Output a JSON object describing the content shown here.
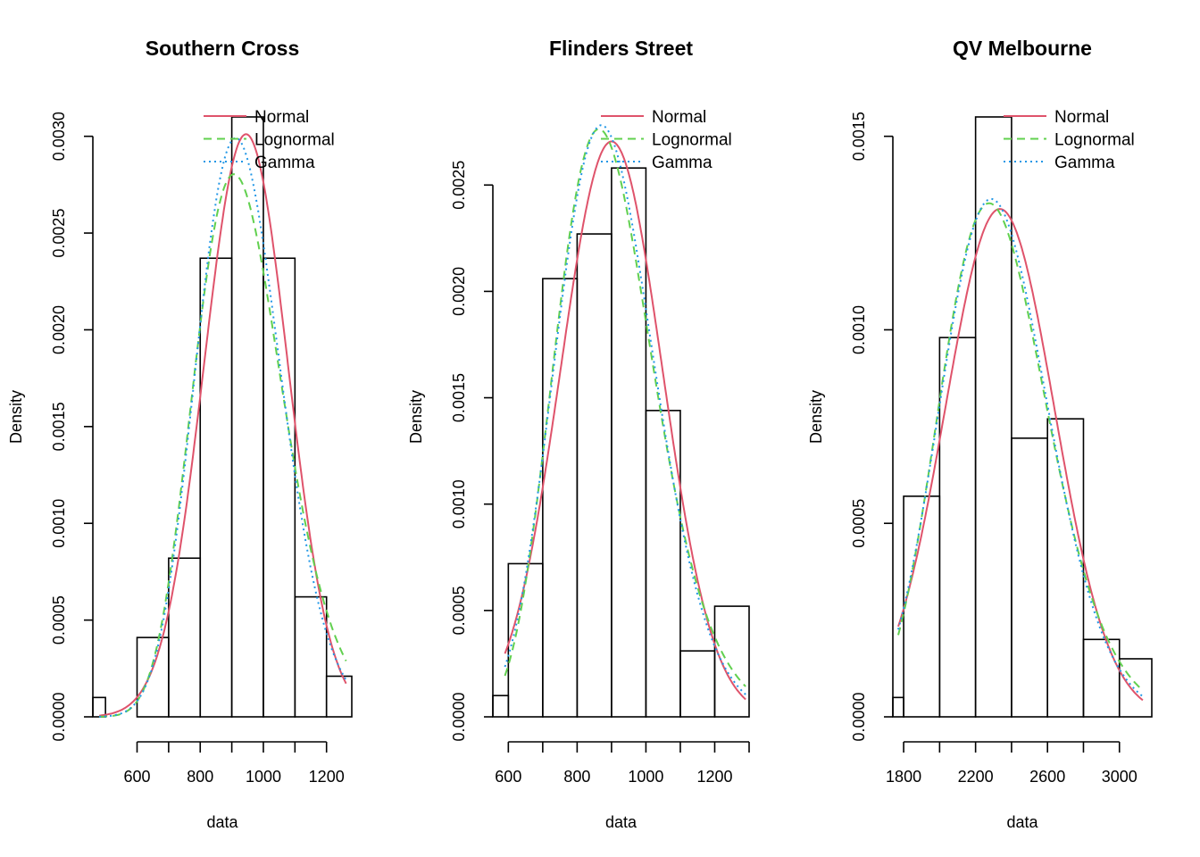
{
  "colors": {
    "normal": "#DF536B",
    "lognormal": "#61D04F",
    "gamma": "#2297E6",
    "axis": "#000000"
  },
  "chart_data": [
    {
      "type": "histogram",
      "title": "Southern Cross",
      "xlabel": "data",
      "ylabel": "Density",
      "xlim": [
        460,
        1280
      ],
      "ylim": [
        0,
        0.0031
      ],
      "xticks": [
        600,
        800,
        1000,
        1200
      ],
      "xtick_labels": [
        "600",
        "800",
        "1000",
        "1200"
      ],
      "yticks": [
        0,
        0.0005,
        0.001,
        0.0015,
        0.002,
        0.0025,
        0.003
      ],
      "ytick_labels": [
        "0.0000",
        "0.0005",
        "0.0010",
        "0.0015",
        "0.0020",
        "0.0025",
        "0.0030"
      ],
      "bins": [
        {
          "x0": 460,
          "x1": 500,
          "density": 0.0001
        },
        {
          "x0": 500,
          "x1": 600,
          "density": 0.0
        },
        {
          "x0": 600,
          "x1": 700,
          "density": 0.00041
        },
        {
          "x0": 700,
          "x1": 800,
          "density": 0.00082
        },
        {
          "x0": 800,
          "x1": 900,
          "density": 0.00237
        },
        {
          "x0": 900,
          "x1": 1000,
          "density": 0.0031
        },
        {
          "x0": 1000,
          "x1": 1100,
          "density": 0.00237
        },
        {
          "x0": 1100,
          "x1": 1200,
          "density": 0.00062
        },
        {
          "x0": 1200,
          "x1": 1280,
          "density": 0.00021
        }
      ],
      "fits": {
        "normal": {
          "mean": 945,
          "sd": 132.5
        },
        "lognormal": {
          "meanlog": 6.834,
          "sdlog": 0.155
        },
        "gamma": {
          "shape": 48,
          "rate": 0.0515
        }
      },
      "curve_range": [
        480,
        1262
      ],
      "legend": [
        "Normal",
        "Lognormal",
        "Gamma"
      ],
      "legend_position": "top-right"
    },
    {
      "type": "histogram",
      "title": "Flinders Street",
      "xlabel": "data",
      "ylabel": "Density",
      "xlim": [
        555,
        1300
      ],
      "ylim": [
        0,
        0.00282
      ],
      "xticks": [
        600,
        800,
        1000,
        1200
      ],
      "xtick_labels": [
        "600",
        "800",
        "1000",
        "1200"
      ],
      "yticks": [
        0,
        0.0005,
        0.001,
        0.0015,
        0.002,
        0.0025
      ],
      "ytick_labels": [
        "0.0000",
        "0.0005",
        "0.0010",
        "0.0015",
        "0.0020",
        "0.0025"
      ],
      "bins": [
        {
          "x0": 555,
          "x1": 600,
          "density": 0.0001
        },
        {
          "x0": 600,
          "x1": 700,
          "density": 0.00072
        },
        {
          "x0": 700,
          "x1": 800,
          "density": 0.00206
        },
        {
          "x0": 800,
          "x1": 900,
          "density": 0.00227
        },
        {
          "x0": 900,
          "x1": 1000,
          "density": 0.00258
        },
        {
          "x0": 1000,
          "x1": 1100,
          "density": 0.00144
        },
        {
          "x0": 1100,
          "x1": 1200,
          "density": 0.00031
        },
        {
          "x0": 1200,
          "x1": 1300,
          "density": 0.00052
        }
      ],
      "fits": {
        "normal": {
          "mean": 900,
          "sd": 147.5
        },
        "lognormal": {
          "meanlog": 6.788,
          "sdlog": 0.165
        },
        "gamma": {
          "shape": 38,
          "rate": 0.0425
        }
      },
      "curve_range": [
        590,
        1290
      ],
      "legend": [
        "Normal",
        "Lognormal",
        "Gamma"
      ],
      "legend_position": "top-right"
    },
    {
      "type": "histogram",
      "title": "QV Melbourne",
      "xlabel": "data",
      "ylabel": "Density",
      "xlim": [
        1740,
        3180
      ],
      "ylim": [
        0,
        0.00155
      ],
      "xticks": [
        1800,
        2200,
        2600,
        3000
      ],
      "xtick_labels": [
        "1800",
        "2200",
        "2600",
        "3000"
      ],
      "yticks": [
        0,
        0.0005,
        0.001,
        0.0015
      ],
      "ytick_labels": [
        "0.0000",
        "0.0005",
        "0.0010",
        "0.0015"
      ],
      "bins": [
        {
          "x0": 1740,
          "x1": 1800,
          "density": 5e-05
        },
        {
          "x0": 1800,
          "x1": 2000,
          "density": 0.00057
        },
        {
          "x0": 2000,
          "x1": 2200,
          "density": 0.00098
        },
        {
          "x0": 2200,
          "x1": 2400,
          "density": 0.00155
        },
        {
          "x0": 2400,
          "x1": 2600,
          "density": 0.00072
        },
        {
          "x0": 2600,
          "x1": 2800,
          "density": 0.00077
        },
        {
          "x0": 2800,
          "x1": 3000,
          "density": 0.0002
        },
        {
          "x0": 3000,
          "x1": 3180,
          "density": 0.00015
        }
      ],
      "fits": {
        "normal": {
          "mean": 2335,
          "sd": 304
        },
        "lognormal": {
          "meanlog": 7.747,
          "sdlog": 0.131
        },
        "gamma": {
          "shape": 60,
          "rate": 0.0258
        }
      },
      "curve_range": [
        1770,
        3130
      ],
      "legend": [
        "Normal",
        "Lognormal",
        "Gamma"
      ],
      "legend_position": "top-right"
    }
  ]
}
